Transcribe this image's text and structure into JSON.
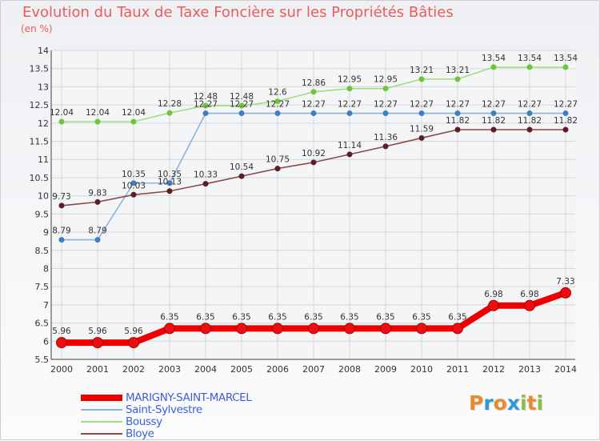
{
  "title": "Evolution du Taux de Taxe Foncière sur les Propriétés Bâties",
  "unit_label": "(en %)",
  "logo": {
    "letters": [
      {
        "ch": "P",
        "color": "#e98a2c"
      },
      {
        "ch": "r",
        "color": "#2a9ad5"
      },
      {
        "ch": "o",
        "color": "#e98a2c"
      },
      {
        "ch": "x",
        "color": "#2a9ad5"
      },
      {
        "ch": "i",
        "color": "#8cbf3f"
      },
      {
        "ch": "t",
        "color": "#e98a2c"
      },
      {
        "ch": "i",
        "color": "#8cbf3f"
      }
    ]
  },
  "chart_data": {
    "type": "line",
    "title": "Evolution du Taux de Taxe Foncière sur les Propriétés Bâties",
    "ylabel": "(en %)",
    "xlabel": "",
    "x": [
      2000,
      2001,
      2002,
      2003,
      2004,
      2005,
      2006,
      2007,
      2008,
      2009,
      2010,
      2011,
      2012,
      2013,
      2014
    ],
    "ylim": [
      5.5,
      14
    ],
    "yticks": [
      5.5,
      6,
      6.5,
      7,
      7.5,
      8,
      8.5,
      9,
      9.5,
      10,
      10.5,
      11,
      11.5,
      12,
      12.5,
      13,
      13.5,
      14
    ],
    "grid": true,
    "legend_position": "bottom-left",
    "series": [
      {
        "name": "MARIGNY-SAINT-MARCEL",
        "color": "#ee0000",
        "marker": "#e81010",
        "bold": true,
        "values": [
          5.96,
          5.96,
          5.96,
          6.35,
          6.35,
          6.35,
          6.35,
          6.35,
          6.35,
          6.35,
          6.35,
          6.35,
          6.98,
          6.98,
          7.33
        ]
      },
      {
        "name": "Saint-Sylvestre",
        "color": "#8ab4dc",
        "marker": "#3c7fc3",
        "values": [
          8.79,
          8.79,
          10.35,
          10.35,
          12.27,
          12.27,
          12.27,
          12.27,
          12.27,
          12.27,
          12.27,
          12.27,
          12.27,
          12.27,
          12.27
        ]
      },
      {
        "name": "Boussy",
        "color": "#9ee07a",
        "marker": "#6ec43c",
        "values": [
          12.04,
          12.04,
          12.04,
          12.28,
          12.48,
          12.48,
          12.6,
          12.86,
          12.95,
          12.95,
          13.21,
          13.21,
          13.54,
          13.54,
          13.54
        ]
      },
      {
        "name": "Bloye",
        "color": "#8a4a4a",
        "marker": "#5a1f24",
        "values": [
          9.73,
          9.83,
          10.03,
          10.13,
          10.33,
          10.54,
          10.75,
          10.92,
          11.14,
          11.36,
          11.59,
          11.82,
          11.82,
          11.82,
          11.82
        ]
      }
    ]
  }
}
